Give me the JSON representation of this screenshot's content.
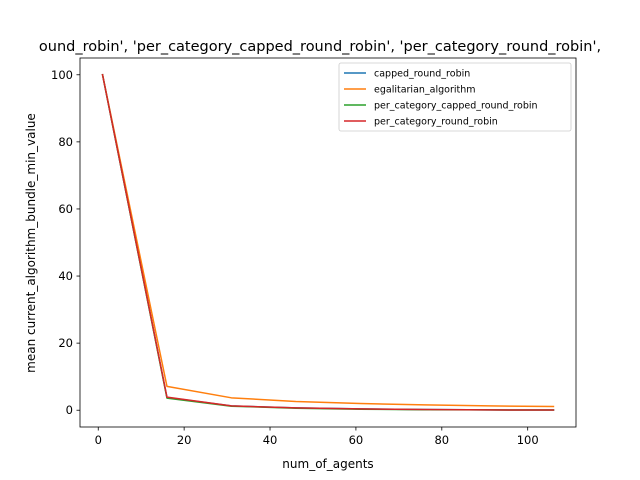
{
  "chart_data": {
    "type": "line",
    "title": "ound_robin', 'per_category_capped_round_robin', 'per_category_round_robin',",
    "xlabel": "num_of_agents",
    "ylabel": "mean current_algorithm_bundle_min_value",
    "xlim": [
      -4.25,
      111.25
    ],
    "ylim": [
      -5,
      105
    ],
    "xticks": [
      0,
      20,
      40,
      60,
      80,
      100
    ],
    "yticks": [
      0,
      20,
      40,
      60,
      80,
      100
    ],
    "x": [
      1,
      16,
      31,
      46,
      61,
      76,
      91,
      106
    ],
    "series": [
      {
        "name": "capped_round_robin",
        "color": "#1f77b4",
        "values": [
          100,
          3.8,
          1.3,
          0.7,
          0.4,
          0.2,
          0.1,
          0.05
        ]
      },
      {
        "name": "egalitarian_algorithm",
        "color": "#ff7f0e",
        "values": [
          100,
          7.1,
          3.7,
          2.6,
          2.0,
          1.6,
          1.3,
          1.1
        ]
      },
      {
        "name": "per_category_capped_round_robin",
        "color": "#2ca02c",
        "values": [
          100,
          3.6,
          1.2,
          0.6,
          0.3,
          0.15,
          0.1,
          0.05
        ]
      },
      {
        "name": "per_category_round_robin",
        "color": "#d62728",
        "values": [
          100,
          3.9,
          1.3,
          0.7,
          0.4,
          0.2,
          0.1,
          0.05
        ]
      }
    ],
    "legend_position": "top-right",
    "grid": false
  }
}
